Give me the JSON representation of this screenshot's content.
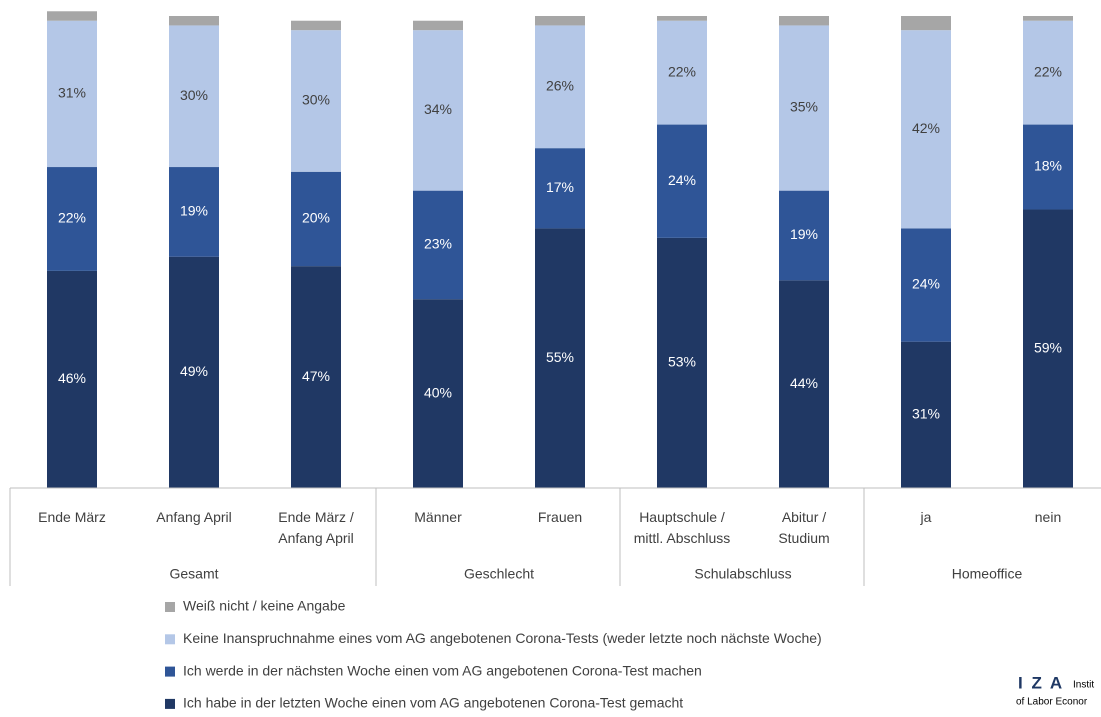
{
  "chart_data": {
    "type": "stacked_bar",
    "categories": [
      [
        "Ende März"
      ],
      [
        "Anfang April"
      ],
      [
        "Ende März /",
        "Anfang April"
      ],
      [
        "Männer"
      ],
      [
        "Frauen"
      ],
      [
        "Hauptschule /",
        "mittl. Abschluss"
      ],
      [
        "Abitur /",
        "Studium"
      ],
      [
        "ja"
      ],
      [
        "nein"
      ]
    ],
    "groups": [
      "Gesamt",
      "Geschlecht",
      "Schulabschluss",
      "Homeoffice"
    ],
    "ylim": [
      0,
      100
    ],
    "series": [
      {
        "name": "Ich habe in der letzten Woche einen vom AG angebotenen Corona-Test gemacht",
        "color": "#203864",
        "values": [
          46,
          49,
          47,
          40,
          55,
          53,
          44,
          31,
          59
        ],
        "value_labels": [
          "46%",
          "49%",
          "47%",
          "40%",
          "55%",
          "53%",
          "44%",
          "31%",
          "59%"
        ]
      },
      {
        "name": "Ich werde in der nächsten Woche einen vom AG angebotenen Corona-Test machen",
        "color": "#2f5597",
        "values": [
          22,
          19,
          20,
          23,
          17,
          24,
          19,
          24,
          18
        ],
        "value_labels": [
          "22%",
          "19%",
          "20%",
          "23%",
          "17%",
          "24%",
          "19%",
          "24%",
          "18%"
        ]
      },
      {
        "name": "Keine Inanspruchnahme eines vom AG angebotenen Corona-Tests (weder letzte noch nächste Woche)",
        "color": "#b4c7e7",
        "values": [
          31,
          30,
          30,
          34,
          26,
          22,
          35,
          42,
          22
        ],
        "value_labels": [
          "31%",
          "30%",
          "30%",
          "34%",
          "26%",
          "22%",
          "35%",
          "42%",
          "22%"
        ]
      },
      {
        "name": "Weiß nicht / keine Angabe",
        "color": "#a6a6a6",
        "values": [
          2,
          2,
          2,
          2,
          2,
          1,
          2,
          3,
          1
        ]
      }
    ]
  },
  "logo": {
    "mark": "I Z A",
    "line1": "Instit",
    "line2": "of Labor Econor"
  }
}
